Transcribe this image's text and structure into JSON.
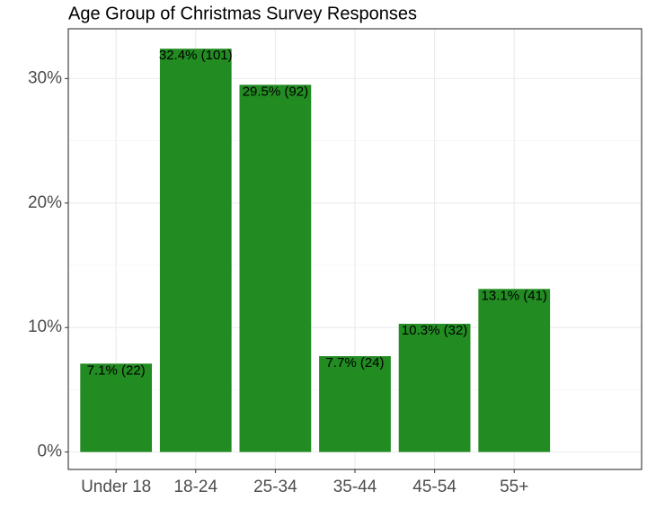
{
  "chart_data": {
    "type": "bar",
    "title": "Age Group of Christmas Survey Responses",
    "categories": [
      "Under 18",
      "18-24",
      "25-34",
      "35-44",
      "45-54",
      "55+"
    ],
    "values": [
      7.1,
      32.4,
      29.5,
      7.7,
      10.3,
      13.1
    ],
    "value_labels": [
      "7.1% (22)",
      "32.4% (101)",
      "29.5% (92)",
      "7.7% (24)",
      "10.3% (32)",
      "13.1% (41)"
    ],
    "color": "#228b22",
    "ylim": [
      -1.4,
      34
    ],
    "yticks": [
      {
        "value": 0,
        "label": "0%"
      },
      {
        "value": 10,
        "label": "10%"
      },
      {
        "value": 20,
        "label": "20%"
      },
      {
        "value": 30,
        "label": "30%"
      }
    ],
    "minor_yticks": [
      5,
      15,
      25
    ],
    "grid": true
  }
}
